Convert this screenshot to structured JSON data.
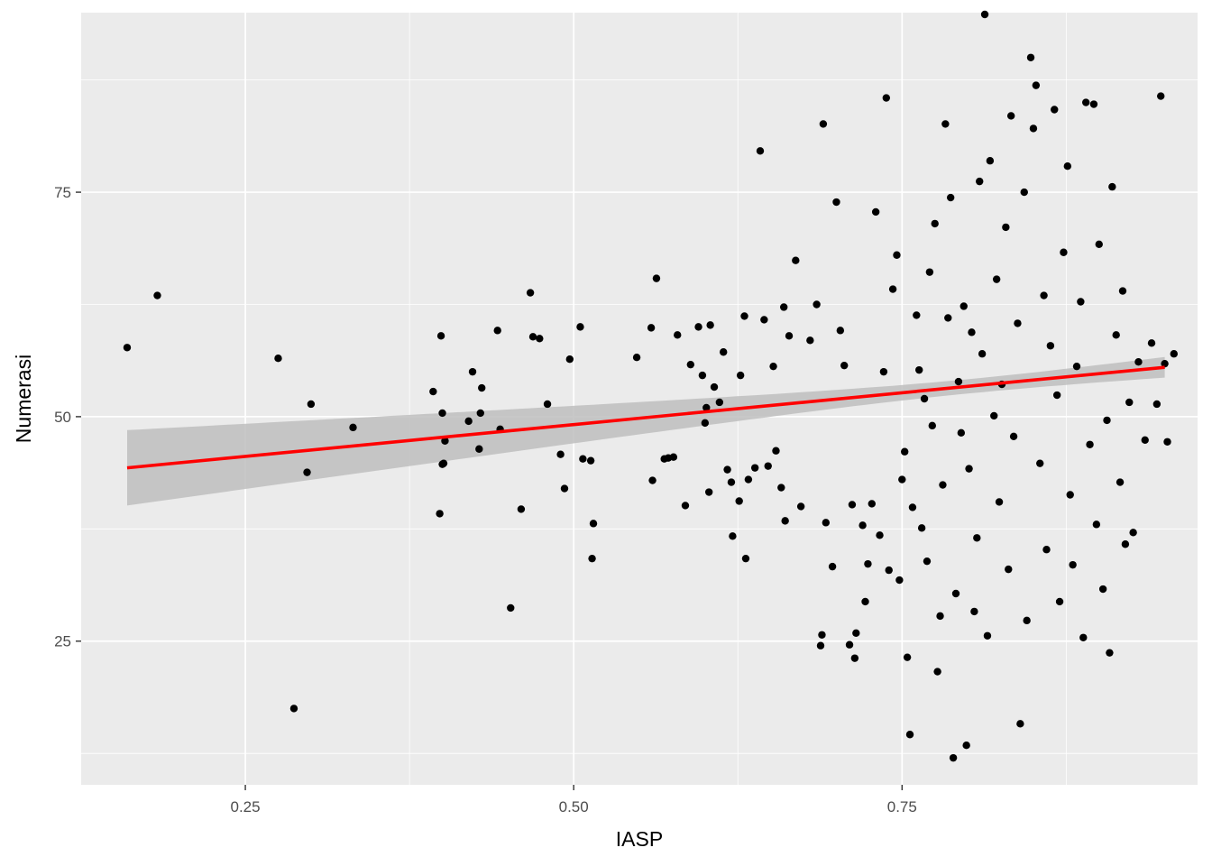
{
  "chart_data": {
    "type": "scatter",
    "title": "",
    "xlabel": "IASP",
    "ylabel": "Numerasi",
    "xlim": [
      0.125,
      0.975
    ],
    "ylim": [
      9,
      95
    ],
    "x_ticks": [
      0.25,
      0.5,
      0.75
    ],
    "x_tick_labels": [
      "0.25",
      "0.50",
      "0.75"
    ],
    "y_ticks": [
      25,
      50,
      75
    ],
    "y_tick_labels": [
      "25",
      "50",
      "75"
    ],
    "grid": true,
    "legend": "none",
    "colors": {
      "panel_background": "#ebebeb",
      "grid": "#ffffff",
      "points": "#000000",
      "fit_line": "#ff0000",
      "confidence_band": "#bebebe"
    },
    "fit": {
      "method": "linear",
      "x_range": [
        0.16,
        0.95
      ],
      "y_start": 44.3,
      "y_end": 55.5,
      "band_start": [
        40.2,
        48.6
      ],
      "band_end": [
        54.4,
        56.7
      ],
      "band_anchor_x": 0.8,
      "band_anchor_halfwidth": 0.8
    },
    "points": [
      [
        0.16,
        57.7
      ],
      [
        0.183,
        63.5
      ],
      [
        0.275,
        56.5
      ],
      [
        0.287,
        17.5
      ],
      [
        0.297,
        43.8
      ],
      [
        0.3,
        51.4
      ],
      [
        0.332,
        48.8
      ],
      [
        0.393,
        52.8
      ],
      [
        0.398,
        39.2
      ],
      [
        0.399,
        59.0
      ],
      [
        0.4,
        44.7
      ],
      [
        0.4,
        50.4
      ],
      [
        0.401,
        44.8
      ],
      [
        0.402,
        47.3
      ],
      [
        0.42,
        49.5
      ],
      [
        0.423,
        55.0
      ],
      [
        0.428,
        46.4
      ],
      [
        0.429,
        50.4
      ],
      [
        0.43,
        53.2
      ],
      [
        0.442,
        59.6
      ],
      [
        0.444,
        48.6
      ],
      [
        0.452,
        28.7
      ],
      [
        0.46,
        39.7
      ],
      [
        0.467,
        63.8
      ],
      [
        0.469,
        58.9
      ],
      [
        0.474,
        58.7
      ],
      [
        0.48,
        51.4
      ],
      [
        0.49,
        45.8
      ],
      [
        0.493,
        42.0
      ],
      [
        0.497,
        56.4
      ],
      [
        0.505,
        60.0
      ],
      [
        0.507,
        45.3
      ],
      [
        0.513,
        45.1
      ],
      [
        0.514,
        34.2
      ],
      [
        0.515,
        38.1
      ],
      [
        0.548,
        56.6
      ],
      [
        0.559,
        59.9
      ],
      [
        0.56,
        42.9
      ],
      [
        0.563,
        65.4
      ],
      [
        0.569,
        45.3
      ],
      [
        0.572,
        45.4
      ],
      [
        0.576,
        45.5
      ],
      [
        0.579,
        59.1
      ],
      [
        0.585,
        40.1
      ],
      [
        0.589,
        55.8
      ],
      [
        0.595,
        60.0
      ],
      [
        0.598,
        54.6
      ],
      [
        0.6,
        49.3
      ],
      [
        0.601,
        51.0
      ],
      [
        0.603,
        41.6
      ],
      [
        0.604,
        60.2
      ],
      [
        0.607,
        53.3
      ],
      [
        0.611,
        51.6
      ],
      [
        0.614,
        57.2
      ],
      [
        0.617,
        44.1
      ],
      [
        0.62,
        42.7
      ],
      [
        0.621,
        36.7
      ],
      [
        0.626,
        40.6
      ],
      [
        0.627,
        54.6
      ],
      [
        0.63,
        61.2
      ],
      [
        0.631,
        34.2
      ],
      [
        0.633,
        43.0
      ],
      [
        0.638,
        44.3
      ],
      [
        0.642,
        79.6
      ],
      [
        0.645,
        60.8
      ],
      [
        0.648,
        44.5
      ],
      [
        0.652,
        55.6
      ],
      [
        0.654,
        46.2
      ],
      [
        0.658,
        42.1
      ],
      [
        0.66,
        62.2
      ],
      [
        0.661,
        38.4
      ],
      [
        0.664,
        59.0
      ],
      [
        0.669,
        67.4
      ],
      [
        0.673,
        40.0
      ],
      [
        0.68,
        58.5
      ],
      [
        0.685,
        62.5
      ],
      [
        0.688,
        24.5
      ],
      [
        0.689,
        25.7
      ],
      [
        0.69,
        82.6
      ],
      [
        0.692,
        38.2
      ],
      [
        0.697,
        33.3
      ],
      [
        0.7,
        73.9
      ],
      [
        0.703,
        59.6
      ],
      [
        0.706,
        55.7
      ],
      [
        0.71,
        24.6
      ],
      [
        0.712,
        40.2
      ],
      [
        0.714,
        23.1
      ],
      [
        0.715,
        25.9
      ],
      [
        0.72,
        37.9
      ],
      [
        0.722,
        29.4
      ],
      [
        0.724,
        33.6
      ],
      [
        0.727,
        40.3
      ],
      [
        0.73,
        72.8
      ],
      [
        0.733,
        36.8
      ],
      [
        0.736,
        55.0
      ],
      [
        0.738,
        85.5
      ],
      [
        0.74,
        32.9
      ],
      [
        0.743,
        64.2
      ],
      [
        0.746,
        68.0
      ],
      [
        0.748,
        31.8
      ],
      [
        0.75,
        43.0
      ],
      [
        0.752,
        46.1
      ],
      [
        0.754,
        23.2
      ],
      [
        0.756,
        14.6
      ],
      [
        0.758,
        39.9
      ],
      [
        0.761,
        61.3
      ],
      [
        0.763,
        55.2
      ],
      [
        0.765,
        37.6
      ],
      [
        0.767,
        52.0
      ],
      [
        0.769,
        33.9
      ],
      [
        0.771,
        66.1
      ],
      [
        0.773,
        49.0
      ],
      [
        0.775,
        71.5
      ],
      [
        0.777,
        21.6
      ],
      [
        0.779,
        27.8
      ],
      [
        0.781,
        42.4
      ],
      [
        0.783,
        82.6
      ],
      [
        0.785,
        61.0
      ],
      [
        0.787,
        74.4
      ],
      [
        0.789,
        12.0
      ],
      [
        0.791,
        30.3
      ],
      [
        0.793,
        53.9
      ],
      [
        0.795,
        48.2
      ],
      [
        0.797,
        62.3
      ],
      [
        0.799,
        13.4
      ],
      [
        0.801,
        44.2
      ],
      [
        0.803,
        59.4
      ],
      [
        0.805,
        28.3
      ],
      [
        0.807,
        36.5
      ],
      [
        0.809,
        76.2
      ],
      [
        0.811,
        57.0
      ],
      [
        0.813,
        94.8
      ],
      [
        0.815,
        25.6
      ],
      [
        0.817,
        78.5
      ],
      [
        0.82,
        50.1
      ],
      [
        0.822,
        65.3
      ],
      [
        0.824,
        40.5
      ],
      [
        0.826,
        53.6
      ],
      [
        0.829,
        71.1
      ],
      [
        0.831,
        33.0
      ],
      [
        0.833,
        83.5
      ],
      [
        0.835,
        47.8
      ],
      [
        0.838,
        60.4
      ],
      [
        0.84,
        15.8
      ],
      [
        0.843,
        75.0
      ],
      [
        0.845,
        27.3
      ],
      [
        0.848,
        90.0
      ],
      [
        0.85,
        82.1
      ],
      [
        0.852,
        86.9
      ],
      [
        0.855,
        44.8
      ],
      [
        0.858,
        63.5
      ],
      [
        0.86,
        35.2
      ],
      [
        0.863,
        57.9
      ],
      [
        0.866,
        84.2
      ],
      [
        0.868,
        52.4
      ],
      [
        0.87,
        29.4
      ],
      [
        0.873,
        68.3
      ],
      [
        0.876,
        77.9
      ],
      [
        0.878,
        41.3
      ],
      [
        0.88,
        33.5
      ],
      [
        0.883,
        55.6
      ],
      [
        0.886,
        62.8
      ],
      [
        0.888,
        25.4
      ],
      [
        0.89,
        85.0
      ],
      [
        0.893,
        46.9
      ],
      [
        0.896,
        84.8
      ],
      [
        0.898,
        38.0
      ],
      [
        0.9,
        69.2
      ],
      [
        0.903,
        30.8
      ],
      [
        0.906,
        49.6
      ],
      [
        0.908,
        23.7
      ],
      [
        0.91,
        75.6
      ],
      [
        0.913,
        59.1
      ],
      [
        0.916,
        42.7
      ],
      [
        0.918,
        64.0
      ],
      [
        0.92,
        35.8
      ],
      [
        0.923,
        51.6
      ],
      [
        0.926,
        37.1
      ],
      [
        0.93,
        56.1
      ],
      [
        0.935,
        47.4
      ],
      [
        0.94,
        58.2
      ],
      [
        0.944,
        51.4
      ],
      [
        0.947,
        85.7
      ],
      [
        0.95,
        55.9
      ],
      [
        0.952,
        47.2
      ],
      [
        0.957,
        57.0
      ]
    ]
  }
}
